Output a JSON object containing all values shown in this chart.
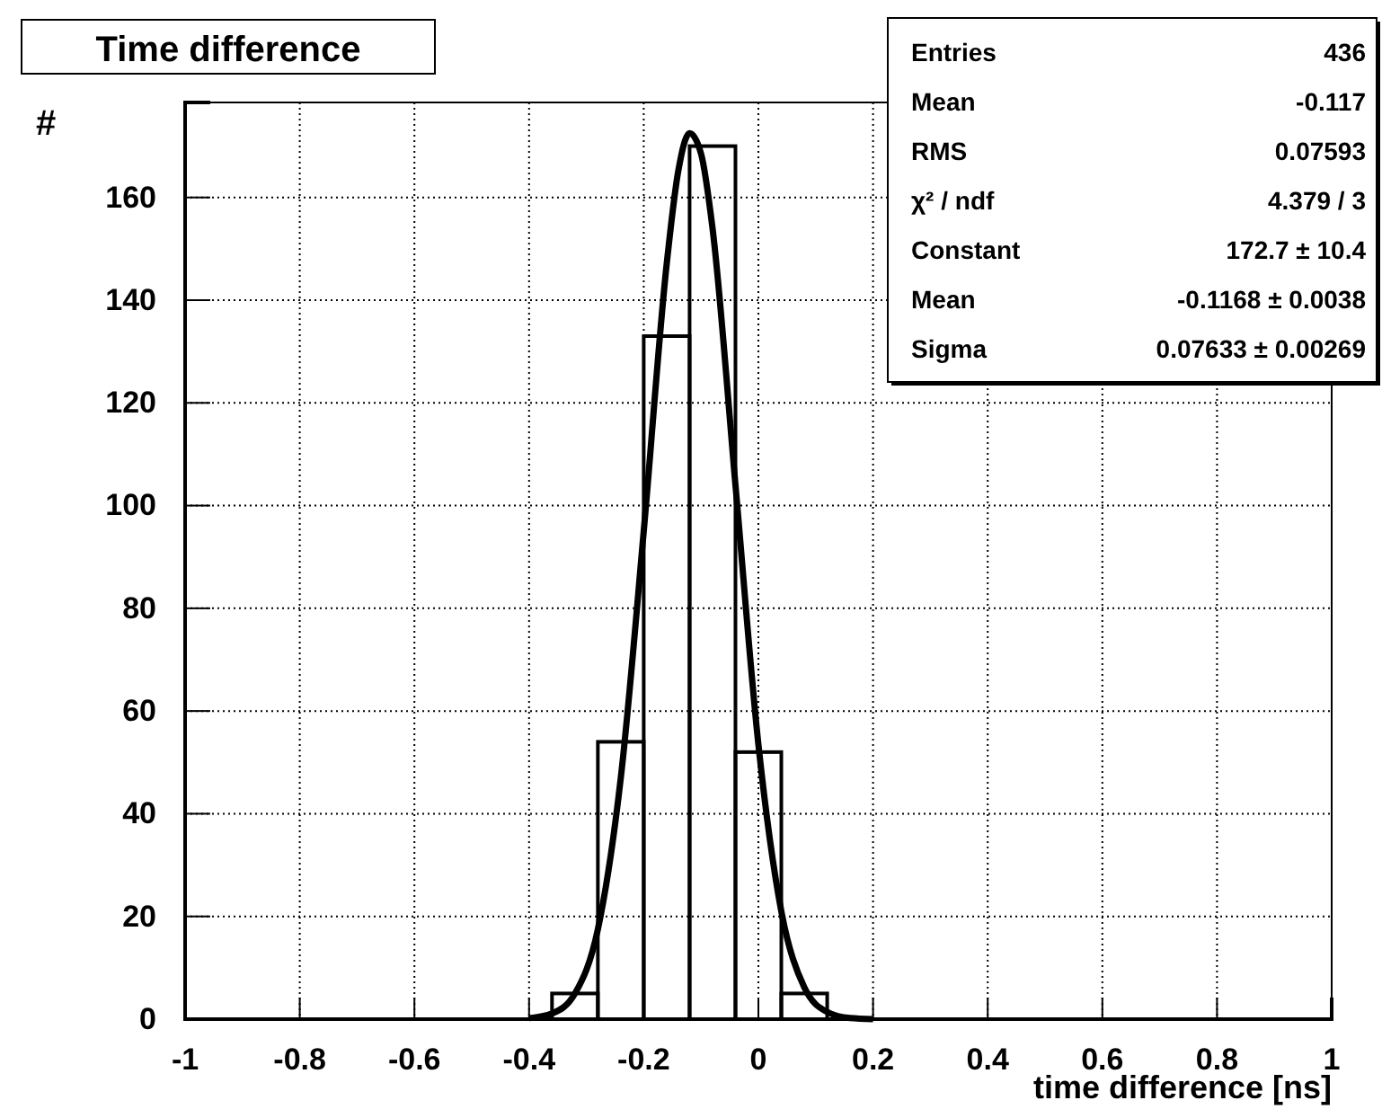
{
  "chart_data": {
    "type": "histogram",
    "title": "Time difference",
    "xlabel": "time difference [ns]",
    "ylabel": "#",
    "xlim": [
      -1,
      1
    ],
    "xticks": [
      -1,
      -0.8,
      -0.6,
      -0.4,
      -0.2,
      0,
      0.2,
      0.4,
      0.6,
      0.8,
      1
    ],
    "ylim": [
      0,
      178.5
    ],
    "yticks": [
      0,
      20,
      40,
      60,
      80,
      100,
      120,
      140,
      160
    ],
    "grid": true,
    "line_style": "solid",
    "marker": "none",
    "series": [
      {
        "color": "#000000",
        "bins": [
          -1,
          -0.92,
          -0.84,
          -0.76,
          -0.68,
          -0.6,
          -0.52,
          -0.44,
          -0.36,
          -0.28,
          -0.2,
          -0.12,
          -0.04,
          0.04,
          0.12,
          0.2,
          0.28,
          0.36,
          0.44,
          0.52,
          0.6,
          0.68,
          0.76,
          0.84,
          0.92,
          1
        ],
        "values": [
          0,
          0,
          0,
          0,
          0,
          0,
          0,
          0,
          5,
          54,
          133,
          170,
          52,
          5,
          0,
          0,
          0,
          0,
          0,
          0,
          0,
          0,
          0,
          0,
          0
        ]
      },
      {
        "type": "line",
        "color": "#000000",
        "x": [
          -0.4,
          -0.36,
          -0.32,
          -0.28,
          -0.24,
          -0.2,
          -0.16,
          -0.14,
          -0.12,
          -0.1,
          -0.08,
          -0.04,
          0,
          0.04,
          0.08,
          0.12,
          0.16,
          0.2
        ],
        "values": [
          0.2,
          1.1,
          5,
          17.5,
          47,
          95,
          147,
          165,
          172.5,
          168.5,
          154,
          104,
          53.5,
          21,
          6.2,
          1.4,
          0.2,
          0
        ]
      }
    ],
    "annotations": [
      "Entries\t436",
      "Mean\t-0.117",
      "RMS\t0.07593",
      "χ² / ndf\t4.379 / 3",
      "Constant\t172.7 ± 10.4",
      "Mean\t-0.1168 ± 0.0038",
      "Sigma\t0.07633 ± 0.00269"
    ]
  }
}
